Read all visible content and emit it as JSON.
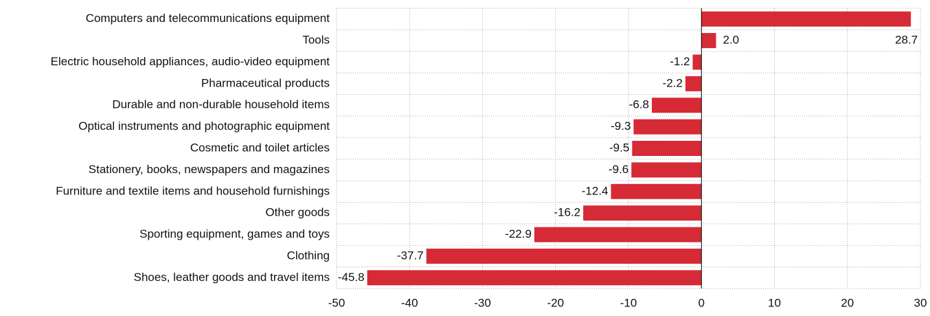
{
  "chart_data": {
    "type": "bar",
    "orientation": "horizontal",
    "categories": [
      "Computers and telecommunications equipment",
      "Tools",
      "Electric household appliances, audio-video equipment",
      "Pharmaceutical products",
      "Durable and non-durable household items",
      "Optical instruments and photographic equipment",
      "Cosmetic and toilet articles",
      "Stationery, books, newspapers and magazines",
      "Furniture and textile items and household furnishings",
      "Other goods",
      "Sporting equipment, games and toys",
      "Clothing",
      "Shoes, leather goods and travel items"
    ],
    "values": [
      28.7,
      2.0,
      -1.2,
      -2.2,
      -6.8,
      -9.3,
      -9.5,
      -9.6,
      -12.4,
      -16.2,
      -22.9,
      -37.7,
      -45.8
    ],
    "value_labels": [
      "28.7",
      "2.0",
      "-1.2",
      "-2.2",
      "-6.8",
      "-9.3",
      "-9.5",
      "-9.6",
      "-12.4",
      "-16.2",
      "-22.9",
      "-37.7",
      "-45.8"
    ],
    "color": "#d62a36",
    "xlim": [
      -50,
      30
    ],
    "xticks": [
      -50,
      -40,
      -30,
      -20,
      -10,
      0,
      10,
      20,
      30
    ],
    "grid": true
  }
}
